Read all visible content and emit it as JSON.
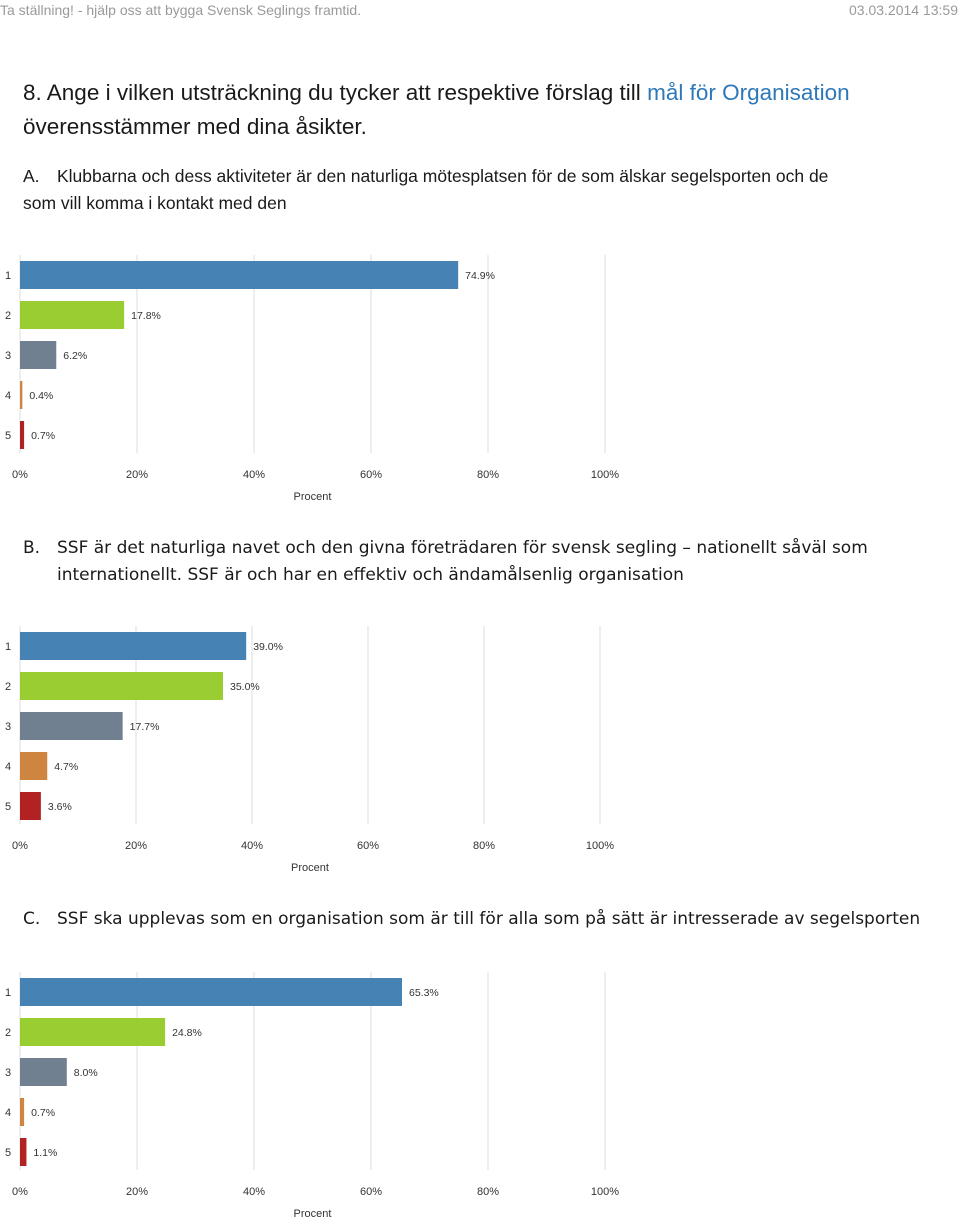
{
  "header": {
    "left_text": "Ta ställning! - hjälp oss att bygga Svensk Seglings framtid.",
    "timestamp": "03.03.2014 13:59"
  },
  "question": {
    "number": "8.",
    "text_before": "Ange i vilken utsträckning du tycker att respektive förslag till",
    "text_highlight": "mål för Organisation",
    "text_after": "överensstämmer med dina åsikter."
  },
  "colors": {
    "highlight": "#2e78b8",
    "series": [
      "#4682b4",
      "#9acd32",
      "#708090",
      "#cd853f",
      "#b22222"
    ],
    "grid": "#dddddd"
  },
  "sections": [
    {
      "letter": "A.",
      "text_line1": "Klubbarna och dess aktiviteter är den naturliga mötesplatsen för de som älskar segelsporten och de",
      "text_line2": "som vill komma i kontakt med den"
    },
    {
      "letter": "B.",
      "text_line1": "SSF är det naturliga navet och den givna företrädaren för svensk segling – nationellt såväl som",
      "text_line2": "internationellt. SSF är och har en effektiv och ändamålsenlig organisation"
    },
    {
      "letter": "C.",
      "text_line1": "SSF ska upplevas som en organisation som är till för alla som på sätt är intresserade av segelsporten",
      "text_line2": ""
    }
  ],
  "chart_data": [
    {
      "type": "bar",
      "orientation": "horizontal",
      "categories": [
        "1",
        "2",
        "3",
        "4",
        "5"
      ],
      "values": [
        74.9,
        17.8,
        6.2,
        0.4,
        0.7
      ],
      "value_labels": [
        "74.9%",
        "17.8%",
        "6.2%",
        "0.4%",
        "0.7%"
      ],
      "xlabel": "Procent",
      "xlim": [
        0,
        100
      ],
      "xticks": [
        "0%",
        "20%",
        "40%",
        "60%",
        "80%",
        "100%"
      ],
      "grid": true
    },
    {
      "type": "bar",
      "orientation": "horizontal",
      "categories": [
        "1",
        "2",
        "3",
        "4",
        "5"
      ],
      "values": [
        39.0,
        35.0,
        17.7,
        4.7,
        3.6
      ],
      "value_labels": [
        "39.0%",
        "35.0%",
        "17.7%",
        "4.7%",
        "3.6%"
      ],
      "xlabel": "Procent",
      "xlim": [
        0,
        100
      ],
      "xticks": [
        "0%",
        "20%",
        "40%",
        "60%",
        "80%",
        "100%"
      ],
      "grid": true
    },
    {
      "type": "bar",
      "orientation": "horizontal",
      "categories": [
        "1",
        "2",
        "3",
        "4",
        "5"
      ],
      "values": [
        65.3,
        24.8,
        8.0,
        0.7,
        1.1
      ],
      "value_labels": [
        "65.3%",
        "24.8%",
        "8.0%",
        "0.7%",
        "1.1%"
      ],
      "xlabel": "Procent",
      "xlim": [
        0,
        100
      ],
      "xticks": [
        "0%",
        "20%",
        "40%",
        "60%",
        "80%",
        "100%"
      ],
      "grid": true
    }
  ]
}
